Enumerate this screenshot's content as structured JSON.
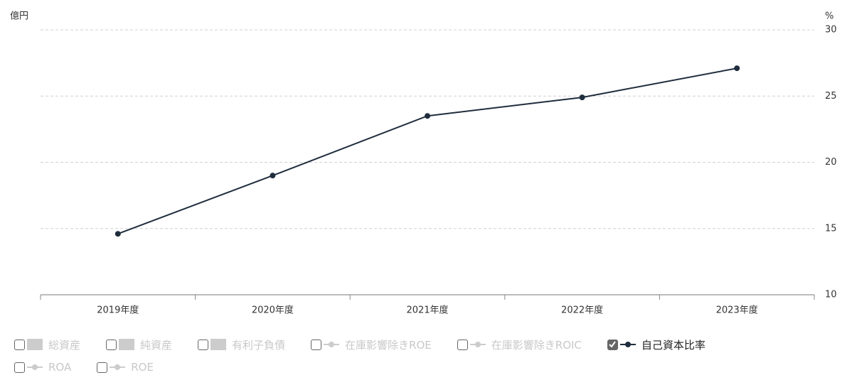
{
  "chart_data": {
    "type": "line",
    "y_axis_label": "億円",
    "y2_axis_label": "%",
    "categories": [
      "2019年度",
      "2020年度",
      "2021年度",
      "2022年度",
      "2023年度"
    ],
    "series": [
      {
        "name": "総資産",
        "marker": "bar",
        "visible": false,
        "color": "#cccccc"
      },
      {
        "name": "純資産",
        "marker": "bar",
        "visible": false,
        "color": "#cccccc"
      },
      {
        "name": "有利子負債",
        "marker": "bar",
        "visible": false,
        "color": "#cccccc"
      },
      {
        "name": "在庫影響除きROE",
        "marker": "line",
        "visible": false,
        "color": "#cccccc"
      },
      {
        "name": "在庫影響除きROIC",
        "marker": "line",
        "visible": false,
        "color": "#cccccc"
      },
      {
        "name": "自己資本比率",
        "marker": "line",
        "visible": true,
        "color": "#1f2d3d",
        "axis": "y2",
        "values": [
          14.6,
          19.0,
          23.5,
          24.9,
          27.1
        ]
      },
      {
        "name": "ROA",
        "marker": "line",
        "visible": false,
        "color": "#cccccc"
      },
      {
        "name": "ROE",
        "marker": "line",
        "visible": false,
        "color": "#cccccc"
      }
    ],
    "y2lim": [
      10,
      30
    ],
    "y2ticks": [
      10,
      15,
      20,
      25,
      30
    ],
    "grid": true
  }
}
